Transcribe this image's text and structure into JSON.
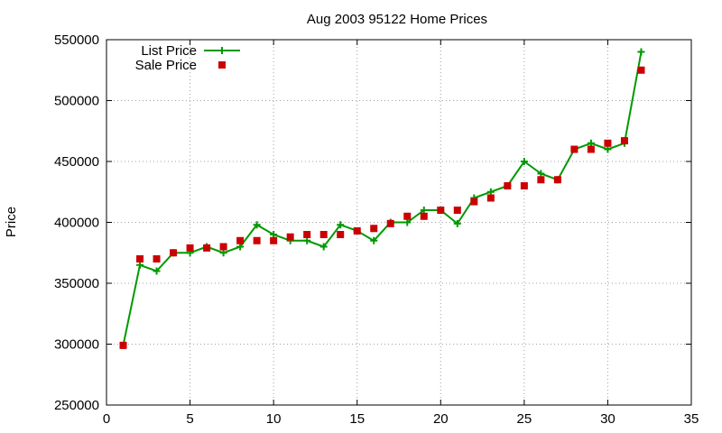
{
  "chart_data": {
    "type": "line",
    "title": "Aug 2003 95122 Home Prices",
    "xlabel": "",
    "ylabel": "Price",
    "xlim": [
      0,
      35
    ],
    "ylim": [
      250000,
      550000
    ],
    "xticks": [
      0,
      5,
      10,
      15,
      20,
      25,
      30,
      35
    ],
    "yticks": [
      250000,
      300000,
      350000,
      400000,
      450000,
      500000,
      550000
    ],
    "grid": true,
    "legend_position": "top-left",
    "series": [
      {
        "name": "List Price",
        "style": "lines+crosses",
        "color": "#009900",
        "x": [
          1,
          2,
          3,
          4,
          5,
          6,
          7,
          8,
          9,
          10,
          11,
          12,
          13,
          14,
          15,
          16,
          17,
          18,
          19,
          20,
          21,
          22,
          23,
          24,
          25,
          26,
          27,
          28,
          29,
          30,
          31,
          32
        ],
        "y": [
          299000,
          365000,
          360000,
          375000,
          375000,
          380000,
          375000,
          380000,
          398000,
          390000,
          385000,
          385000,
          380000,
          398000,
          393000,
          385000,
          400000,
          400000,
          410000,
          410000,
          399000,
          420000,
          425000,
          430000,
          450000,
          440000,
          435000,
          460000,
          465000,
          460000,
          465000,
          540000
        ]
      },
      {
        "name": "Sale Price",
        "style": "squares",
        "color": "#cc0000",
        "x": [
          1,
          2,
          3,
          4,
          5,
          6,
          7,
          8,
          9,
          10,
          11,
          12,
          13,
          14,
          15,
          16,
          17,
          18,
          19,
          20,
          21,
          22,
          23,
          24,
          25,
          26,
          27,
          28,
          29,
          30,
          31,
          32
        ],
        "y": [
          299000,
          370000,
          370000,
          375000,
          379000,
          379000,
          380000,
          385000,
          385000,
          385000,
          388000,
          390000,
          390000,
          390000,
          393000,
          395000,
          399000,
          405000,
          405000,
          410000,
          410000,
          417000,
          420000,
          430000,
          430000,
          435000,
          435000,
          460000,
          460000,
          465000,
          467000,
          525000
        ]
      }
    ]
  }
}
